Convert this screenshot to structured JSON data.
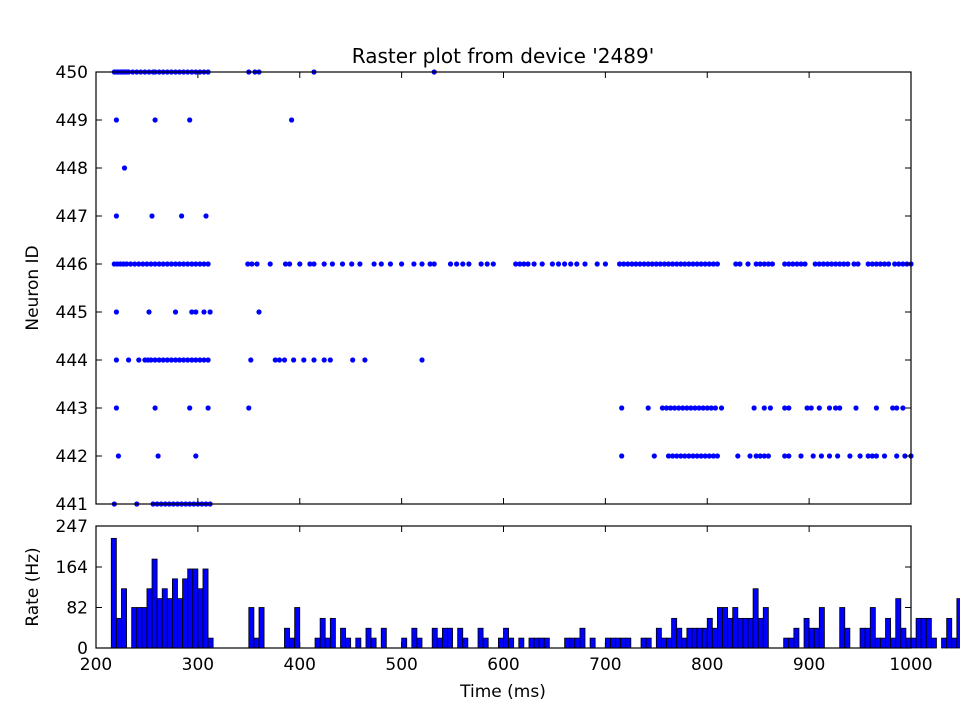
{
  "chart_data": [
    {
      "type": "scatter",
      "title": "Raster plot from device '2489'",
      "xlabel": "",
      "ylabel": "Neuron ID",
      "xlim": [
        200,
        1000
      ],
      "ylim": [
        441,
        450
      ],
      "x_ticks": [],
      "y_ticks": [
        "441",
        "442",
        "443",
        "444",
        "445",
        "446",
        "447",
        "448",
        "449",
        "450"
      ],
      "marker_color": "#0000ff",
      "series": [
        {
          "neuron": 450,
          "times": [
            218,
            220,
            222,
            224,
            226,
            228,
            230,
            232,
            236,
            240,
            244,
            248,
            252,
            256,
            258,
            262,
            266,
            270,
            274,
            278,
            282,
            286,
            290,
            294,
            298,
            302,
            306,
            310,
            350,
            356,
            360,
            414,
            532
          ]
        },
        {
          "neuron": 449,
          "times": [
            220,
            258,
            292,
            392
          ]
        },
        {
          "neuron": 448,
          "times": [
            228
          ]
        },
        {
          "neuron": 447,
          "times": [
            220,
            255,
            284,
            308
          ]
        },
        {
          "neuron": 446,
          "times": [
            218,
            221,
            224,
            227,
            230,
            234,
            238,
            242,
            246,
            250,
            254,
            258,
            262,
            266,
            270,
            274,
            278,
            282,
            286,
            290,
            294,
            298,
            302,
            306,
            310,
            349,
            353,
            358,
            371,
            386,
            390,
            400,
            410,
            414,
            424,
            432,
            442,
            451,
            459,
            473,
            480,
            489,
            500,
            512,
            520,
            528,
            532,
            548,
            554,
            560,
            566,
            578,
            584,
            590,
            612,
            616,
            620,
            624,
            630,
            638,
            648,
            654,
            660,
            666,
            672,
            680,
            692,
            700,
            714,
            718,
            722,
            726,
            730,
            734,
            738,
            742,
            746,
            750,
            754,
            758,
            762,
            766,
            770,
            774,
            778,
            782,
            786,
            790,
            794,
            798,
            802,
            806,
            810,
            828,
            832,
            840,
            848,
            852,
            856,
            860,
            864,
            876,
            880,
            884,
            888,
            892,
            896,
            906,
            910,
            914,
            918,
            922,
            926,
            930,
            934,
            938,
            944,
            948,
            958,
            962,
            966,
            970,
            974,
            978,
            984,
            988,
            992,
            996,
            1000
          ]
        },
        {
          "neuron": 445,
          "times": [
            220,
            252,
            278,
            294,
            298,
            306,
            312,
            360
          ]
        },
        {
          "neuron": 444,
          "times": [
            220,
            232,
            242,
            248,
            251,
            254,
            258,
            262,
            266,
            270,
            274,
            278,
            282,
            286,
            290,
            294,
            298,
            302,
            306,
            310,
            352,
            376,
            380,
            385,
            394,
            404,
            414,
            424,
            430,
            452,
            464,
            520
          ]
        },
        {
          "neuron": 443,
          "times": [
            220,
            258,
            292,
            310,
            350,
            716,
            742,
            756,
            760,
            764,
            768,
            772,
            776,
            780,
            784,
            788,
            792,
            796,
            800,
            804,
            808,
            814,
            846,
            856,
            862,
            876,
            880,
            898,
            902,
            910,
            920,
            926,
            930,
            946,
            966,
            982,
            986,
            992
          ]
        },
        {
          "neuron": 442,
          "times": [
            222,
            261,
            298,
            716,
            748,
            762,
            766,
            770,
            774,
            778,
            782,
            786,
            790,
            794,
            798,
            802,
            806,
            810,
            830,
            842,
            848,
            852,
            856,
            860,
            876,
            880,
            892,
            904,
            912,
            920,
            928,
            940,
            950,
            958,
            962,
            966,
            974,
            986,
            994,
            1000
          ]
        },
        {
          "neuron": 441,
          "times": [
            218,
            240,
            256,
            260,
            264,
            268,
            272,
            276,
            280,
            284,
            288,
            292,
            296,
            300,
            304,
            308,
            312
          ]
        }
      ]
    },
    {
      "type": "bar",
      "title": "",
      "xlabel": "Time (ms)",
      "ylabel": "Rate (Hz)",
      "xlim": [
        200,
        1000
      ],
      "ylim": [
        0,
        247
      ],
      "x_ticks": [
        "200",
        "300",
        "400",
        "500",
        "600",
        "700",
        "800",
        "900",
        "1000"
      ],
      "y_ticks": [
        "0",
        "82",
        "164",
        "247"
      ],
      "bin_start": 215,
      "bin_width": 5,
      "bar_color": "#0000ff",
      "values": [
        222,
        60,
        120,
        0,
        82,
        82,
        82,
        120,
        180,
        100,
        120,
        100,
        140,
        100,
        140,
        160,
        160,
        120,
        160,
        20,
        0,
        0,
        0,
        0,
        0,
        0,
        0,
        82,
        20,
        82,
        0,
        0,
        0,
        0,
        40,
        20,
        82,
        0,
        0,
        0,
        20,
        60,
        20,
        60,
        0,
        40,
        20,
        0,
        20,
        0,
        40,
        20,
        0,
        40,
        0,
        0,
        0,
        20,
        0,
        40,
        20,
        0,
        0,
        40,
        20,
        40,
        40,
        0,
        40,
        20,
        0,
        0,
        40,
        20,
        0,
        0,
        20,
        40,
        20,
        0,
        20,
        0,
        20,
        20,
        20,
        20,
        0,
        0,
        0,
        20,
        20,
        20,
        40,
        0,
        20,
        0,
        0,
        20,
        20,
        20,
        20,
        20,
        0,
        0,
        20,
        20,
        0,
        40,
        20,
        20,
        60,
        40,
        20,
        40,
        40,
        40,
        40,
        60,
        40,
        82,
        82,
        60,
        82,
        60,
        60,
        60,
        120,
        60,
        82,
        0,
        0,
        0,
        20,
        20,
        40,
        0,
        60,
        40,
        40,
        82,
        0,
        0,
        0,
        82,
        40,
        0,
        0,
        40,
        40,
        82,
        20,
        20,
        60,
        20,
        100,
        40,
        20,
        20,
        60,
        60,
        60,
        20,
        0,
        20,
        60,
        20,
        100,
        20,
        60
      ]
    }
  ]
}
